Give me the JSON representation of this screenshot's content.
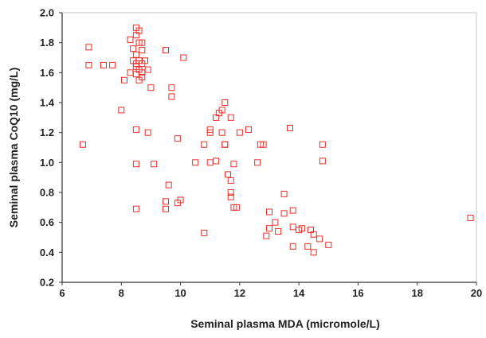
{
  "chart_data": {
    "type": "scatter",
    "title": "",
    "xlabel": "Seminal plasma MDA (micromole/L)",
    "ylabel": "Seminal plasma CoQ10 (mg/L)",
    "xlim": [
      6,
      20
    ],
    "ylim": [
      0.2,
      2.0
    ],
    "xticks": [
      6,
      8,
      10,
      12,
      14,
      16,
      18,
      20
    ],
    "yticks": [
      0.2,
      0.4,
      0.6,
      0.8,
      1.0,
      1.2,
      1.4,
      1.6,
      1.8,
      2.0
    ],
    "xtick_labels": [
      "6",
      "8",
      "10",
      "12",
      "14",
      "16",
      "18",
      "20"
    ],
    "ytick_labels": [
      "0.2",
      "0.4",
      "0.6",
      "0.8",
      "1.0",
      "1.2",
      "1.4",
      "1.6",
      "1.8",
      "2.0"
    ],
    "grid": false,
    "marker": "hollow-square",
    "marker_color": "#e8302b",
    "points": [
      [
        6.7,
        1.12
      ],
      [
        6.9,
        1.77
      ],
      [
        6.9,
        1.65
      ],
      [
        7.4,
        1.65
      ],
      [
        7.7,
        1.65
      ],
      [
        8.0,
        1.35
      ],
      [
        8.1,
        1.55
      ],
      [
        8.3,
        1.82
      ],
      [
        8.3,
        1.6
      ],
      [
        8.4,
        1.76
      ],
      [
        8.4,
        1.68
      ],
      [
        8.5,
        1.9
      ],
      [
        8.5,
        1.85
      ],
      [
        8.5,
        1.72
      ],
      [
        8.5,
        1.66
      ],
      [
        8.5,
        1.64
      ],
      [
        8.5,
        1.59
      ],
      [
        8.5,
        1.22
      ],
      [
        8.5,
        0.99
      ],
      [
        8.5,
        0.69
      ],
      [
        8.6,
        1.88
      ],
      [
        8.6,
        1.8
      ],
      [
        8.6,
        1.68
      ],
      [
        8.6,
        1.62
      ],
      [
        8.6,
        1.55
      ],
      [
        8.7,
        1.8
      ],
      [
        8.7,
        1.75
      ],
      [
        8.7,
        1.66
      ],
      [
        8.7,
        1.6
      ],
      [
        8.7,
        1.57
      ],
      [
        8.8,
        1.68
      ],
      [
        8.9,
        1.62
      ],
      [
        8.9,
        1.2
      ],
      [
        9.0,
        1.5
      ],
      [
        9.1,
        0.99
      ],
      [
        9.5,
        1.75
      ],
      [
        9.5,
        0.74
      ],
      [
        9.5,
        0.69
      ],
      [
        9.6,
        0.85
      ],
      [
        9.7,
        1.5
      ],
      [
        9.7,
        1.44
      ],
      [
        9.9,
        1.16
      ],
      [
        9.9,
        0.73
      ],
      [
        10.0,
        0.75
      ],
      [
        10.1,
        1.7
      ],
      [
        10.5,
        1.0
      ],
      [
        10.8,
        1.12
      ],
      [
        10.8,
        0.53
      ],
      [
        11.0,
        1.22
      ],
      [
        11.0,
        1.2
      ],
      [
        11.0,
        1.0
      ],
      [
        11.2,
        1.3
      ],
      [
        11.2,
        1.01
      ],
      [
        11.3,
        1.33
      ],
      [
        11.4,
        1.35
      ],
      [
        11.4,
        1.2
      ],
      [
        11.5,
        1.4
      ],
      [
        11.5,
        1.12
      ],
      [
        11.5,
        1.12
      ],
      [
        11.6,
        0.92
      ],
      [
        11.7,
        1.3
      ],
      [
        11.7,
        0.88
      ],
      [
        11.7,
        0.8
      ],
      [
        11.7,
        0.77
      ],
      [
        11.8,
        0.99
      ],
      [
        11.8,
        0.7
      ],
      [
        11.9,
        0.7
      ],
      [
        12.0,
        1.2
      ],
      [
        12.3,
        1.22
      ],
      [
        12.6,
        1.0
      ],
      [
        12.7,
        1.12
      ],
      [
        12.8,
        1.12
      ],
      [
        12.9,
        0.51
      ],
      [
        13.0,
        0.67
      ],
      [
        13.0,
        0.56
      ],
      [
        13.2,
        0.6
      ],
      [
        13.3,
        0.54
      ],
      [
        13.5,
        0.79
      ],
      [
        13.5,
        0.66
      ],
      [
        13.7,
        1.23
      ],
      [
        13.8,
        0.68
      ],
      [
        13.8,
        0.57
      ],
      [
        13.8,
        0.44
      ],
      [
        14.0,
        0.55
      ],
      [
        14.1,
        0.56
      ],
      [
        14.3,
        0.44
      ],
      [
        14.4,
        0.55
      ],
      [
        14.5,
        0.4
      ],
      [
        14.5,
        0.52
      ],
      [
        14.7,
        0.49
      ],
      [
        14.8,
        1.12
      ],
      [
        14.8,
        1.01
      ],
      [
        15.0,
        0.45
      ],
      [
        19.8,
        0.63
      ]
    ]
  }
}
